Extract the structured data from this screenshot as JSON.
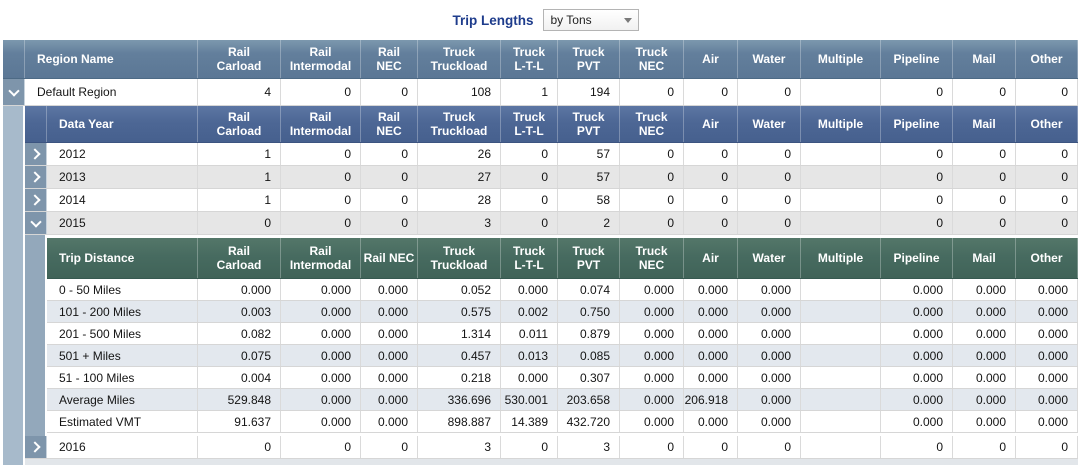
{
  "toolbar": {
    "label": "Trip Lengths",
    "dropdown_value": "by Tons"
  },
  "columns": [
    "Rail\nCarload",
    "Rail\nIntermodal",
    "Rail\nNEC",
    "Truck\nTruckload",
    "Truck\nL-T-L",
    "Truck\nPVT",
    "Truck\nNEC",
    "Air",
    "Water",
    "Multiple",
    "Pipeline",
    "Mail",
    "Other"
  ],
  "columns_distance": [
    "Rail\nCarload",
    "Rail\nIntermodal",
    "Rail NEC",
    "Truck\nTruckload",
    "Truck\nL-T-L",
    "Truck PVT",
    "Truck\nNEC",
    "Air",
    "Water",
    "Multiple",
    "Pipeline",
    "Mail",
    "Other"
  ],
  "region_table": {
    "name_header": "Region Name",
    "row": {
      "name": "Default Region",
      "expanded": true,
      "values": [
        "4",
        "0",
        "0",
        "108",
        "1",
        "194",
        "0",
        "0",
        "0",
        "",
        "0",
        "0",
        "0"
      ]
    }
  },
  "year_table": {
    "name_header": "Data Year",
    "rows": [
      {
        "name": "2012",
        "expanded": false,
        "values": [
          "1",
          "0",
          "0",
          "26",
          "0",
          "57",
          "0",
          "0",
          "0",
          "",
          "0",
          "0",
          "0"
        ]
      },
      {
        "name": "2013",
        "expanded": false,
        "values": [
          "1",
          "0",
          "0",
          "27",
          "0",
          "57",
          "0",
          "0",
          "0",
          "",
          "0",
          "0",
          "0"
        ]
      },
      {
        "name": "2014",
        "expanded": false,
        "values": [
          "1",
          "0",
          "0",
          "28",
          "0",
          "58",
          "0",
          "0",
          "0",
          "",
          "0",
          "0",
          "0"
        ]
      },
      {
        "name": "2015",
        "expanded": true,
        "values": [
          "0",
          "0",
          "0",
          "3",
          "0",
          "2",
          "0",
          "0",
          "0",
          "",
          "0",
          "0",
          "0"
        ]
      },
      {
        "name": "2016",
        "expanded": false,
        "values": [
          "0",
          "0",
          "0",
          "3",
          "0",
          "3",
          "0",
          "0",
          "0",
          "",
          "0",
          "0",
          "0"
        ]
      }
    ]
  },
  "distance_table": {
    "name_header": "Trip Distance",
    "rows": [
      {
        "name": "0 - 50 Miles",
        "values": [
          "0.000",
          "0.000",
          "0.000",
          "0.052",
          "0.000",
          "0.074",
          "0.000",
          "0.000",
          "0.000",
          "",
          "0.000",
          "0.000",
          "0.000"
        ]
      },
      {
        "name": "101 - 200 Miles",
        "values": [
          "0.003",
          "0.000",
          "0.000",
          "0.575",
          "0.002",
          "0.750",
          "0.000",
          "0.000",
          "0.000",
          "",
          "0.000",
          "0.000",
          "0.000"
        ]
      },
      {
        "name": "201 - 500 Miles",
        "values": [
          "0.082",
          "0.000",
          "0.000",
          "1.314",
          "0.011",
          "0.879",
          "0.000",
          "0.000",
          "0.000",
          "",
          "0.000",
          "0.000",
          "0.000"
        ]
      },
      {
        "name": "501 + Miles",
        "values": [
          "0.075",
          "0.000",
          "0.000",
          "0.457",
          "0.013",
          "0.085",
          "0.000",
          "0.000",
          "0.000",
          "",
          "0.000",
          "0.000",
          "0.000"
        ]
      },
      {
        "name": "51 - 100 Miles",
        "values": [
          "0.004",
          "0.000",
          "0.000",
          "0.218",
          "0.000",
          "0.307",
          "0.000",
          "0.000",
          "0.000",
          "",
          "0.000",
          "0.000",
          "0.000"
        ]
      },
      {
        "name": "Average Miles",
        "values": [
          "529.848",
          "0.000",
          "0.000",
          "336.696",
          "530.001",
          "203.658",
          "0.000",
          "206.918",
          "0.000",
          "",
          "0.000",
          "0.000",
          "0.000"
        ]
      },
      {
        "name": "Estimated VMT",
        "values": [
          "91.637",
          "0.000",
          "0.000",
          "898.887",
          "14.389",
          "432.720",
          "0.000",
          "0.000",
          "0.000",
          "",
          "0.000",
          "0.000",
          "0.000"
        ]
      }
    ]
  },
  "colors": {
    "header_slate": "#617d9a",
    "header_navy": "#4d6795",
    "header_teal": "#476b60",
    "expander_strip": "#7e95ab",
    "outer_gutter": "#a7bacb",
    "alt_row_gray": "#e6e6e6",
    "alt_row_blue": "#e3e8ee",
    "title_blue": "#1e3c8c"
  }
}
